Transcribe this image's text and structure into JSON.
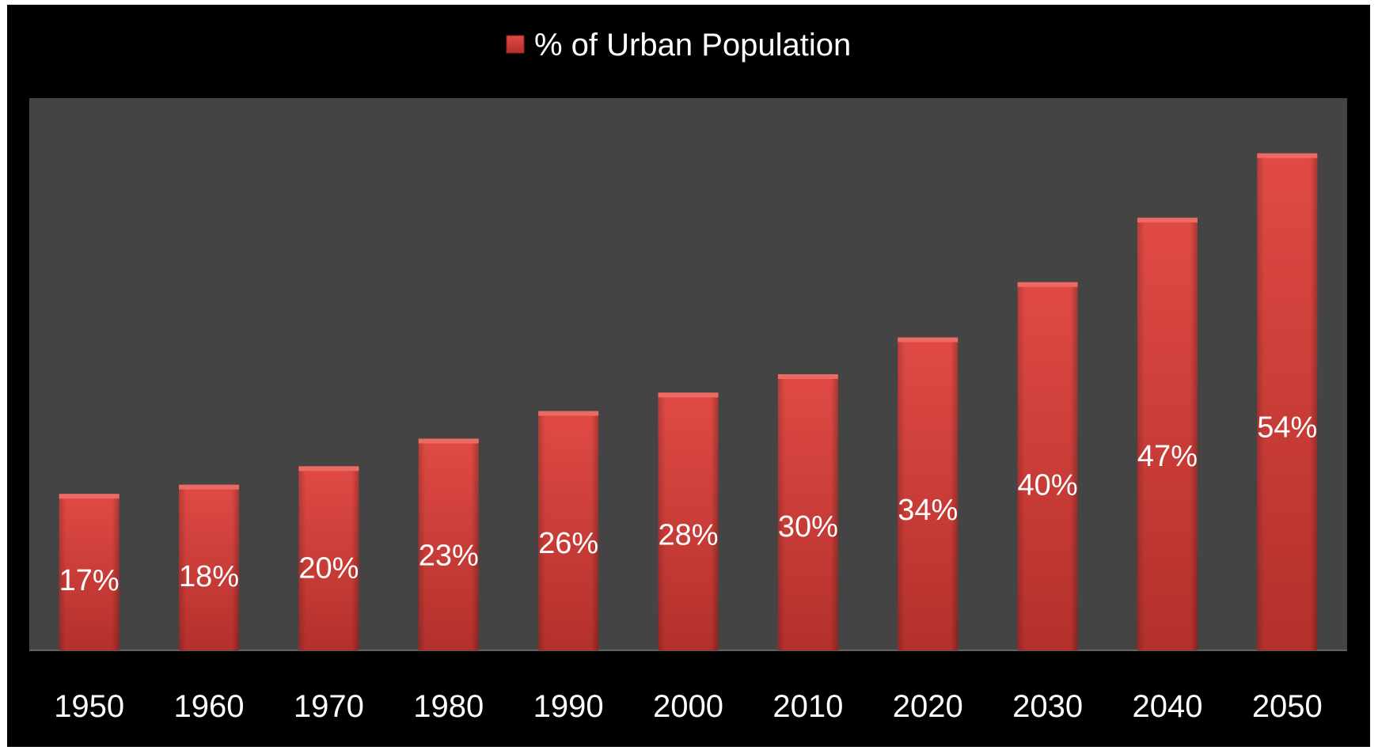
{
  "chart_data": {
    "type": "bar",
    "categories": [
      "1950",
      "1960",
      "1970",
      "1980",
      "1990",
      "2000",
      "2010",
      "2020",
      "2030",
      "2040",
      "2050"
    ],
    "series": [
      {
        "name": "% of Urban Population",
        "values": [
          17,
          18,
          20,
          23,
          26,
          28,
          30,
          34,
          40,
          47,
          54
        ],
        "labels": [
          "17%",
          "18%",
          "20%",
          "23%",
          "26%",
          "28%",
          "30%",
          "34%",
          "40%",
          "47%",
          "54%"
        ]
      }
    ],
    "title": "",
    "xlabel": "",
    "ylabel": "",
    "ylim": [
      0,
      60
    ],
    "grid": false,
    "legend": "top-center",
    "colors": {
      "background": "#000000",
      "plot_area": "#444444",
      "bar": "#d9443f",
      "bar_dark": "#b4302c",
      "bar_light": "#ec6a64",
      "text": "#ffffff"
    }
  }
}
